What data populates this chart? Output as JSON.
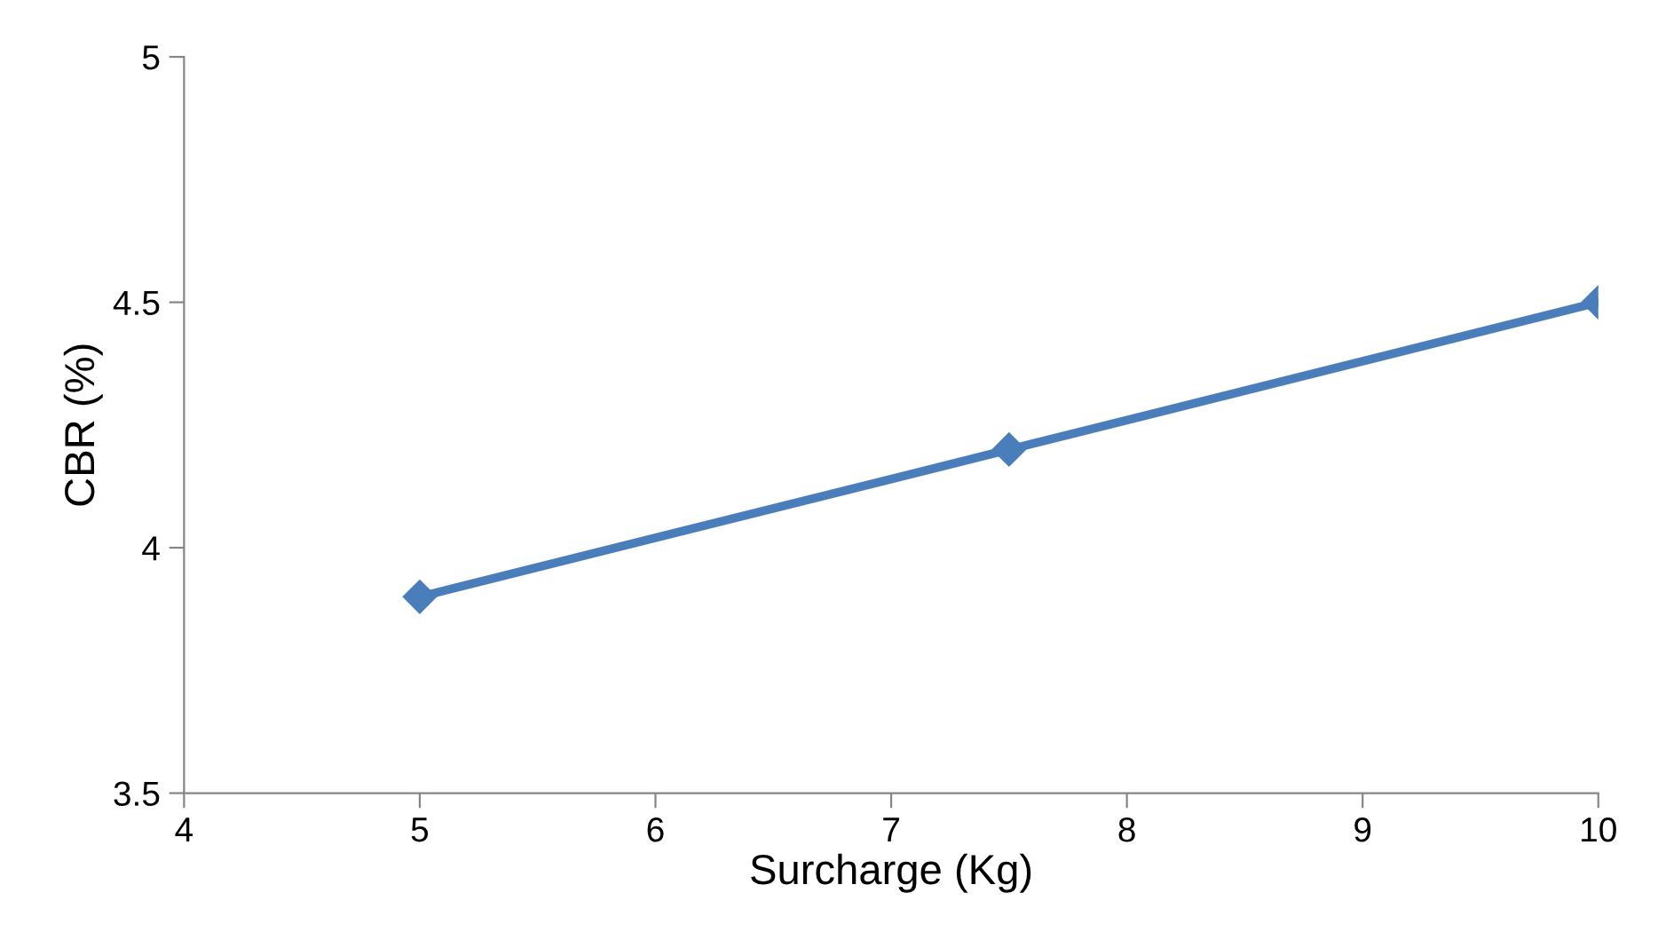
{
  "chart_data": {
    "type": "line",
    "xlabel": "Surcharge (Kg)",
    "ylabel": "CBR (%)",
    "x": [
      5,
      7.5,
      10
    ],
    "series": [
      {
        "color": "#4a7ebb",
        "values": [
          3.9,
          4.2,
          4.5
        ]
      }
    ],
    "xlim": [
      4,
      10
    ],
    "xticks": [
      4,
      5,
      6,
      7,
      8,
      9,
      10
    ],
    "ylim": [
      3.5,
      5
    ],
    "yticks": [
      3.5,
      4,
      4.5,
      5
    ],
    "marker": "diamond",
    "line_style": "solid",
    "grid": false,
    "legend": false
  }
}
